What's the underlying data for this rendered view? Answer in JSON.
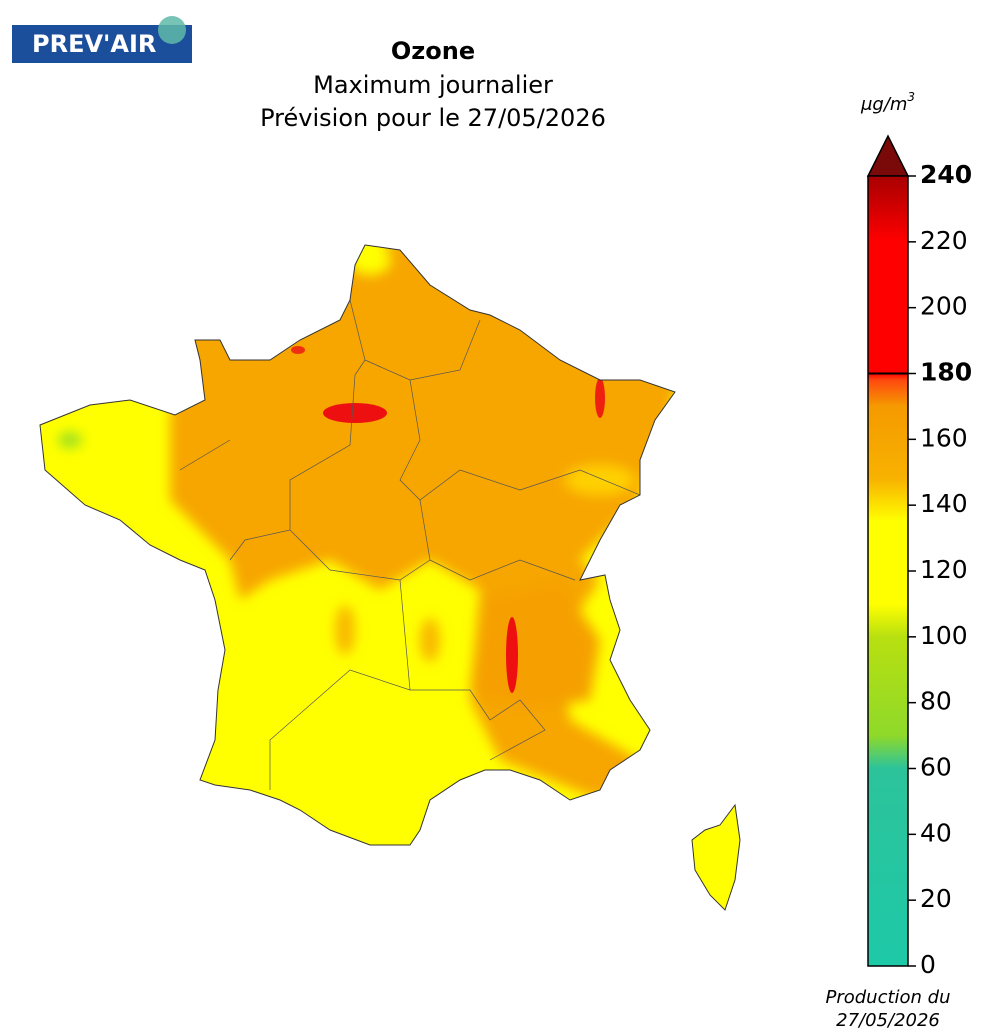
{
  "logo": "PREV'AIR",
  "title": "Ozone",
  "subtitle": "Maximum journalier",
  "forecast": "Prévision pour le 27/05/2026",
  "colorbar": {
    "unit": {
      "base": "μg/m",
      "exponent": "3"
    },
    "ylim": [
      0,
      240
    ],
    "yticks": [
      0,
      20,
      40,
      60,
      80,
      100,
      120,
      140,
      160,
      180,
      200,
      220,
      240
    ],
    "threshold": 180,
    "over_color": "#7a0a0a",
    "stops": [
      {
        "value": 0,
        "color": "#1ec9a8"
      },
      {
        "value": 60,
        "color": "#2cc39b"
      },
      {
        "value": 70,
        "color": "#8fd92a"
      },
      {
        "value": 100,
        "color": "#b8e010"
      },
      {
        "value": 110,
        "color": "#ffff00"
      },
      {
        "value": 135,
        "color": "#ffff00"
      },
      {
        "value": 148,
        "color": "#f8b200"
      },
      {
        "value": 170,
        "color": "#f59a00"
      },
      {
        "value": 178,
        "color": "#ff4a10"
      },
      {
        "value": 180,
        "color": "#ff0000"
      },
      {
        "value": 220,
        "color": "#ff0000"
      },
      {
        "value": 240,
        "color": "#a80000"
      }
    ]
  },
  "production": [
    "Production du",
    "27/05/2026"
  ]
}
